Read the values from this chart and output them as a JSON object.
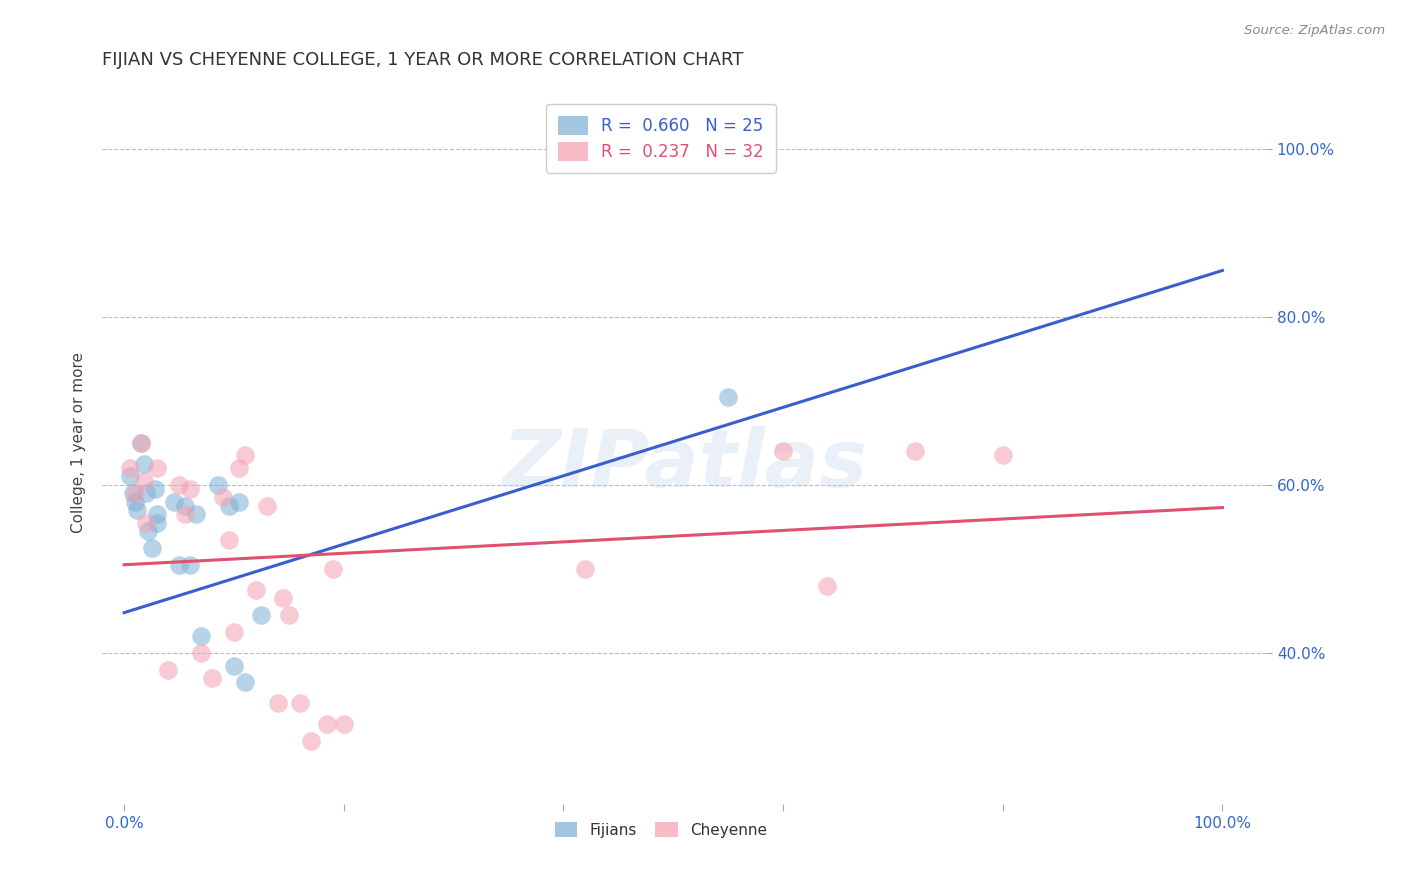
{
  "title": "FIJIAN VS CHEYENNE COLLEGE, 1 YEAR OR MORE CORRELATION CHART",
  "source": "Source: ZipAtlas.com",
  "ylabel_label": "College, 1 year or more",
  "xlim": [
    -0.02,
    1.04
  ],
  "ylim": [
    0.22,
    1.08
  ],
  "fijian_R": 0.66,
  "fijian_N": 25,
  "cheyenne_R": 0.237,
  "cheyenne_N": 32,
  "fijian_color": "#7BAFD4",
  "cheyenne_color": "#F4A0B0",
  "fijian_line_color": "#3A5FCD",
  "cheyenne_line_color": "#E05070",
  "fijian_line_start_y": 0.448,
  "fijian_line_end_y": 0.855,
  "cheyenne_line_start_y": 0.505,
  "cheyenne_line_end_y": 0.573,
  "fijian_x": [
    0.005,
    0.008,
    0.01,
    0.012,
    0.015,
    0.018,
    0.02,
    0.022,
    0.025,
    0.028,
    0.03,
    0.03,
    0.045,
    0.05,
    0.055,
    0.06,
    0.065,
    0.07,
    0.085,
    0.095,
    0.1,
    0.105,
    0.11,
    0.125,
    0.55
  ],
  "fijian_y": [
    0.61,
    0.59,
    0.58,
    0.57,
    0.65,
    0.625,
    0.59,
    0.545,
    0.525,
    0.595,
    0.565,
    0.555,
    0.58,
    0.505,
    0.575,
    0.505,
    0.565,
    0.42,
    0.6,
    0.575,
    0.385,
    0.58,
    0.365,
    0.445,
    0.705
  ],
  "cheyenne_x": [
    0.005,
    0.01,
    0.015,
    0.018,
    0.02,
    0.03,
    0.04,
    0.05,
    0.055,
    0.06,
    0.07,
    0.08,
    0.09,
    0.095,
    0.1,
    0.105,
    0.11,
    0.12,
    0.13,
    0.14,
    0.145,
    0.15,
    0.16,
    0.17,
    0.185,
    0.19,
    0.2,
    0.42,
    0.6,
    0.64,
    0.72,
    0.8
  ],
  "cheyenne_y": [
    0.62,
    0.59,
    0.65,
    0.605,
    0.555,
    0.62,
    0.38,
    0.6,
    0.565,
    0.595,
    0.4,
    0.37,
    0.585,
    0.535,
    0.425,
    0.62,
    0.635,
    0.475,
    0.575,
    0.34,
    0.465,
    0.445,
    0.34,
    0.295,
    0.315,
    0.5,
    0.315,
    0.5,
    0.64,
    0.48,
    0.64,
    0.635
  ],
  "watermark_text": "ZIPatlas",
  "background_color": "#FFFFFF",
  "grid_color": "#BBBBBB",
  "y_tick_positions": [
    0.4,
    0.6,
    0.8,
    1.0
  ],
  "y_tick_labels": [
    "40.0%",
    "60.0%",
    "80.0%",
    "100.0%"
  ],
  "x_tick_positions": [
    0.0,
    0.2,
    0.4,
    0.6,
    0.8,
    1.0
  ],
  "x_tick_labels_show": [
    "0.0%",
    "",
    "",
    "",
    "",
    "100.0%"
  ]
}
